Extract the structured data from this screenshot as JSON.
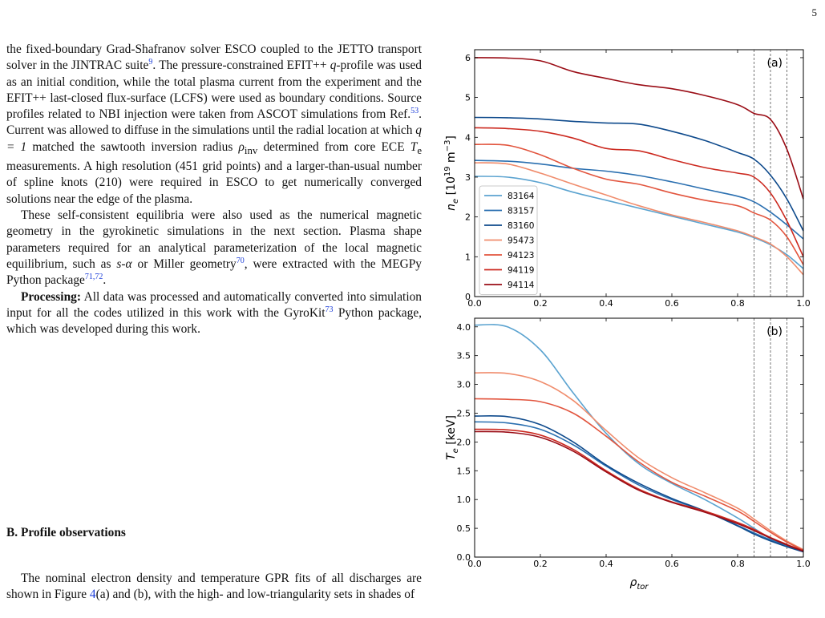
{
  "page_number": "5",
  "para1": {
    "t1": "the fixed-boundary Grad-Shafranov solver ESCO coupled to the JETTO transport solver in the JINTRAC suite",
    "r1": "9",
    "t2": ". The pressure-constrained EFIT++ ",
    "q": "q",
    "t3": "-profile was used as an initial condition, while the total plasma current from the experiment and the EFIT++ last-closed flux-surface (LCFS) were used as boundary conditions. Source profiles related to NBI injection were taken from ASCOT simulations from Ref.",
    "r2": "53",
    "t4": ". Current was allowed to diffuse in the simulations until the radial location at which ",
    "t5": "q = 1",
    "t6": " matched the sawtooth inversion radius ",
    "t7": "ρ",
    "t7sub": "inv",
    "t8": " determined from core ECE ",
    "t9": "T",
    "t9sub": "e",
    "t10": " measurements. A high resolution (451 grid points) and a larger-than-usual number of spline knots (210) were required in ESCO to get numerically converged solutions near the edge of the plasma."
  },
  "para2": {
    "t1": "These self-consistent equilibria were also used as the numerical magnetic geometry in the gyrokinetic simulations in the next section. Plasma shape parameters required for an analytical parameterization of the local magnetic equilibrium, such as ",
    "t2": "s-α",
    "t3": " or Miller geometry",
    "r1": "70",
    "t4": ", were extracted with the MEGPy Python package",
    "r2": "71,72",
    "t5": "."
  },
  "para3": {
    "bold": "Processing:",
    "t1": " All data was processed and automatically converted into simulation input for all the codes utilized in this work with the GyroKit",
    "r1": "73",
    "t2": " Python package, which was developed during this work."
  },
  "section_heading": "B.   Profile observations",
  "para4": {
    "t1": "The nominal electron density and temperature GPR fits of all discharges are shown in Figure ",
    "fig_ref": "4",
    "t2": "(a) and (b), with the high- and low-triangularity sets in shades of"
  },
  "chart_data": [
    {
      "type": "line",
      "panel_label": "(a)",
      "ylabel": "n_e [10^19 m^-3]",
      "xlim": [
        0.0,
        1.0
      ],
      "ylim": [
        0,
        6.2
      ],
      "xticks": [
        "0.0",
        "0.2",
        "0.4",
        "0.6",
        "0.8",
        "1.0"
      ],
      "yticks": [
        "0",
        "1",
        "2",
        "3",
        "4",
        "5",
        "6"
      ],
      "vlines": [
        0.85,
        0.9,
        0.95
      ],
      "legend_placement": "lower-left",
      "x": [
        0.0,
        0.1,
        0.2,
        0.3,
        0.4,
        0.5,
        0.6,
        0.7,
        0.8,
        0.85,
        0.9,
        0.95,
        1.0
      ],
      "series": [
        {
          "name": "83164",
          "color": "#5ba3d0",
          "values": [
            3.02,
            3.0,
            2.86,
            2.62,
            2.42,
            2.22,
            2.02,
            1.82,
            1.62,
            1.48,
            1.3,
            1.05,
            0.7
          ]
        },
        {
          "name": "83157",
          "color": "#2a6fb0",
          "values": [
            3.42,
            3.4,
            3.33,
            3.22,
            3.15,
            3.04,
            2.88,
            2.7,
            2.52,
            2.38,
            2.12,
            1.8,
            1.45
          ]
        },
        {
          "name": "83160",
          "color": "#0e4a8c",
          "values": [
            4.5,
            4.49,
            4.46,
            4.4,
            4.36,
            4.33,
            4.15,
            3.92,
            3.62,
            3.45,
            3.05,
            2.45,
            1.65
          ]
        },
        {
          "name": "95473",
          "color": "#f08c6c",
          "values": [
            3.36,
            3.33,
            3.1,
            2.82,
            2.55,
            2.28,
            2.05,
            1.86,
            1.65,
            1.5,
            1.32,
            1.0,
            0.55
          ]
        },
        {
          "name": "94123",
          "color": "#e2553e",
          "values": [
            3.82,
            3.8,
            3.56,
            3.22,
            2.95,
            2.82,
            2.6,
            2.42,
            2.28,
            2.1,
            1.92,
            1.5,
            0.8
          ]
        },
        {
          "name": "94119",
          "color": "#cc2a20",
          "values": [
            4.24,
            4.22,
            4.15,
            3.98,
            3.72,
            3.66,
            3.44,
            3.24,
            3.1,
            3.0,
            2.6,
            1.9,
            1.0
          ]
        },
        {
          "name": "94114",
          "color": "#9a0d16",
          "values": [
            6.0,
            5.99,
            5.92,
            5.65,
            5.48,
            5.32,
            5.22,
            5.05,
            4.82,
            4.6,
            4.45,
            3.7,
            2.45
          ]
        }
      ]
    },
    {
      "type": "line",
      "panel_label": "(b)",
      "ylabel": "T_e [keV]",
      "xlabel": "ρ_tor",
      "xlim": [
        0.0,
        1.0
      ],
      "ylim": [
        0,
        4.15
      ],
      "xticks": [
        "0.0",
        "0.2",
        "0.4",
        "0.6",
        "0.8",
        "1.0"
      ],
      "yticks": [
        "0.0",
        "0.5",
        "1.0",
        "1.5",
        "2.0",
        "2.5",
        "3.0",
        "3.5",
        "4.0"
      ],
      "vlines": [
        0.85,
        0.9,
        0.95
      ],
      "x": [
        0.0,
        0.1,
        0.2,
        0.3,
        0.4,
        0.5,
        0.6,
        0.7,
        0.8,
        0.85,
        0.9,
        0.95,
        1.0
      ],
      "series": [
        {
          "name": "83164",
          "color": "#5ba3d0",
          "values": [
            4.03,
            4.0,
            3.6,
            2.85,
            2.15,
            1.62,
            1.28,
            1.0,
            0.68,
            0.5,
            0.32,
            0.2,
            0.1
          ]
        },
        {
          "name": "83157",
          "color": "#2a6fb0",
          "values": [
            2.35,
            2.33,
            2.22,
            1.95,
            1.58,
            1.25,
            1.0,
            0.8,
            0.55,
            0.42,
            0.3,
            0.2,
            0.1
          ]
        },
        {
          "name": "83160",
          "color": "#0e4a8c",
          "values": [
            2.45,
            2.44,
            2.3,
            2.0,
            1.6,
            1.28,
            1.02,
            0.8,
            0.54,
            0.4,
            0.28,
            0.18,
            0.09
          ]
        },
        {
          "name": "95473",
          "color": "#f08c6c",
          "values": [
            3.2,
            3.19,
            3.05,
            2.72,
            2.2,
            1.72,
            1.38,
            1.12,
            0.85,
            0.66,
            0.46,
            0.28,
            0.13
          ]
        },
        {
          "name": "94123",
          "color": "#e2553e",
          "values": [
            2.75,
            2.74,
            2.7,
            2.5,
            2.1,
            1.65,
            1.3,
            1.06,
            0.8,
            0.62,
            0.43,
            0.26,
            0.12
          ]
        },
        {
          "name": "94119",
          "color": "#cc2a20",
          "values": [
            2.22,
            2.21,
            2.12,
            1.87,
            1.5,
            1.18,
            0.96,
            0.8,
            0.6,
            0.48,
            0.34,
            0.22,
            0.11
          ]
        },
        {
          "name": "94114",
          "color": "#9a0d16",
          "values": [
            2.18,
            2.17,
            2.08,
            1.84,
            1.48,
            1.16,
            0.95,
            0.78,
            0.58,
            0.46,
            0.33,
            0.21,
            0.1
          ]
        }
      ]
    }
  ]
}
